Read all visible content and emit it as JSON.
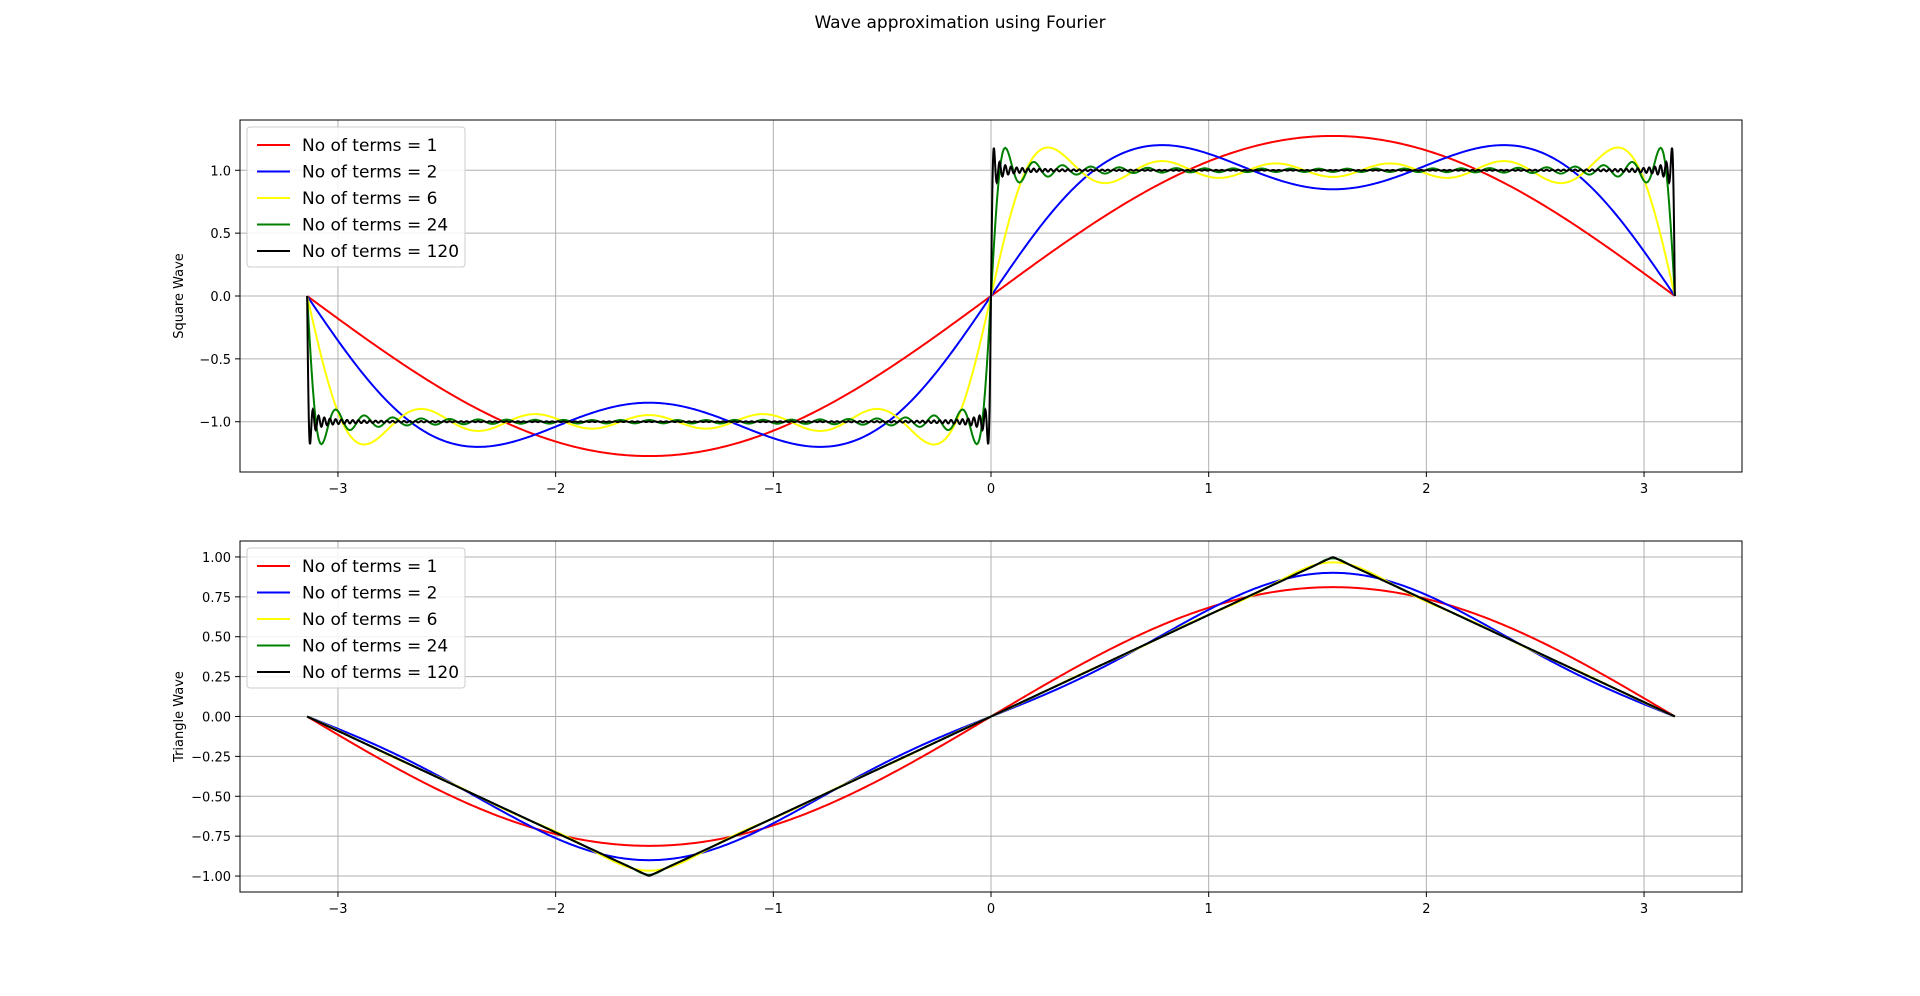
{
  "figure": {
    "title": "Wave approximation using Fourier"
  },
  "chart_data": [
    {
      "type": "line",
      "title": "",
      "xlabel": "",
      "ylabel": "Square Wave",
      "function": "square",
      "x_range": [
        -3.14159,
        3.14159
      ],
      "xlim": [
        -3.45,
        3.45
      ],
      "ylim": [
        -1.4,
        1.4
      ],
      "xticks": [
        -3,
        -2,
        -1,
        0,
        1,
        2,
        3
      ],
      "yticks": [
        -1.0,
        -0.5,
        0.0,
        0.5,
        1.0
      ],
      "xtick_labels": [
        "−3",
        "−2",
        "−1",
        "0",
        "1",
        "2",
        "3"
      ],
      "ytick_labels": [
        "−1.0",
        "−0.5",
        "0.0",
        "0.5",
        "1.0"
      ],
      "grid": true,
      "legend_position": "upper-left",
      "series": [
        {
          "name": "No of terms = 1",
          "terms": 1,
          "color": "#ff0000"
        },
        {
          "name": "No of terms = 2",
          "terms": 2,
          "color": "#0000ff"
        },
        {
          "name": "No of terms = 6",
          "terms": 6,
          "color": "#ffff00"
        },
        {
          "name": "No of terms = 24",
          "terms": 24,
          "color": "#008000"
        },
        {
          "name": "No of terms = 120",
          "terms": 120,
          "color": "#000000"
        }
      ]
    },
    {
      "type": "line",
      "title": "",
      "xlabel": "",
      "ylabel": "Triangle Wave",
      "function": "triangle",
      "x_range": [
        -3.14159,
        3.14159
      ],
      "xlim": [
        -3.45,
        3.45
      ],
      "ylim": [
        -1.1,
        1.1
      ],
      "xticks": [
        -3,
        -2,
        -1,
        0,
        1,
        2,
        3
      ],
      "yticks": [
        -1.0,
        -0.75,
        -0.5,
        -0.25,
        0.0,
        0.25,
        0.5,
        0.75,
        1.0
      ],
      "xtick_labels": [
        "−3",
        "−2",
        "−1",
        "0",
        "1",
        "2",
        "3"
      ],
      "ytick_labels": [
        "−1.00",
        "−0.75",
        "−0.50",
        "−0.25",
        "0.00",
        "0.25",
        "0.50",
        "0.75",
        "1.00"
      ],
      "grid": true,
      "legend_position": "upper-left",
      "series": [
        {
          "name": "No of terms = 1",
          "terms": 1,
          "color": "#ff0000"
        },
        {
          "name": "No of terms = 2",
          "terms": 2,
          "color": "#0000ff"
        },
        {
          "name": "No of terms = 6",
          "terms": 6,
          "color": "#ffff00"
        },
        {
          "name": "No of terms = 24",
          "terms": 24,
          "color": "#008000"
        },
        {
          "name": "No of terms = 120",
          "terms": 120,
          "color": "#000000"
        }
      ]
    }
  ]
}
